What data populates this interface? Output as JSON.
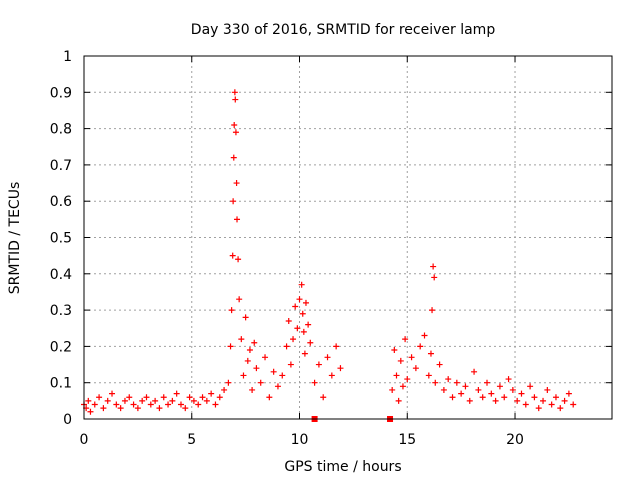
{
  "chart_data": {
    "type": "scatter",
    "title": "Day 330 of 2016, SRMTID for receiver lamp",
    "xlabel": "GPS time / hours",
    "ylabel": "SRMTID / TECUs",
    "xlim": [
      0,
      24.5
    ],
    "ylim": [
      0,
      1
    ],
    "x_ticks": [
      0,
      5,
      10,
      15,
      20
    ],
    "x_tick_labels": [
      "0",
      "5",
      "10",
      "15",
      "20"
    ],
    "y_ticks": [
      0,
      0.1,
      0.2,
      0.3,
      0.4,
      0.5,
      0.6,
      0.7,
      0.8,
      0.9,
      1
    ],
    "y_tick_labels": [
      "0",
      "0.1",
      "0.2",
      "0.3",
      "0.4",
      "0.5",
      "0.6",
      "0.7",
      "0.8",
      "0.9",
      "1"
    ],
    "grid": true,
    "legend": "none",
    "marker_color": "#ff0000",
    "series": [
      {
        "name": "SRMTID",
        "marker": "plus",
        "x": [
          0.0,
          0.1,
          0.2,
          0.3,
          0.5,
          0.7,
          0.9,
          1.1,
          1.3,
          1.5,
          1.7,
          1.9,
          2.1,
          2.3,
          2.5,
          2.7,
          2.9,
          3.1,
          3.3,
          3.5,
          3.7,
          3.9,
          4.1,
          4.3,
          4.5,
          4.7,
          4.9,
          5.1,
          5.3,
          5.5,
          5.7,
          5.9,
          6.1,
          6.3,
          6.5,
          6.7,
          6.8,
          6.85,
          6.9,
          6.92,
          6.95,
          6.97,
          7.0,
          7.02,
          7.05,
          7.08,
          7.1,
          7.15,
          7.2,
          7.3,
          7.4,
          7.5,
          7.6,
          7.7,
          7.8,
          7.9,
          8.0,
          8.2,
          8.4,
          8.6,
          8.8,
          9.0,
          9.2,
          9.4,
          9.5,
          9.6,
          9.7,
          9.8,
          9.9,
          10.0,
          10.1,
          10.15,
          10.2,
          10.25,
          10.3,
          10.4,
          10.5,
          10.7,
          10.9,
          11.1,
          11.3,
          11.5,
          11.7,
          11.9,
          14.3,
          14.4,
          14.5,
          14.6,
          14.7,
          14.8,
          14.9,
          15.0,
          15.2,
          15.4,
          15.6,
          15.8,
          16.0,
          16.1,
          16.15,
          16.2,
          16.25,
          16.3,
          16.5,
          16.7,
          16.9,
          17.1,
          17.3,
          17.5,
          17.7,
          17.9,
          18.1,
          18.3,
          18.5,
          18.7,
          18.9,
          19.1,
          19.3,
          19.5,
          19.7,
          19.9,
          20.1,
          20.3,
          20.5,
          20.7,
          20.9,
          21.1,
          21.3,
          21.5,
          21.7,
          21.9,
          22.1,
          22.3,
          22.5,
          22.7
        ],
        "y": [
          0.04,
          0.03,
          0.05,
          0.02,
          0.04,
          0.06,
          0.03,
          0.05,
          0.07,
          0.04,
          0.03,
          0.05,
          0.06,
          0.04,
          0.03,
          0.05,
          0.06,
          0.04,
          0.05,
          0.03,
          0.06,
          0.04,
          0.05,
          0.07,
          0.04,
          0.03,
          0.06,
          0.05,
          0.04,
          0.06,
          0.05,
          0.07,
          0.04,
          0.06,
          0.08,
          0.1,
          0.2,
          0.3,
          0.45,
          0.6,
          0.72,
          0.81,
          0.9,
          0.88,
          0.79,
          0.65,
          0.55,
          0.44,
          0.33,
          0.22,
          0.12,
          0.28,
          0.16,
          0.19,
          0.08,
          0.21,
          0.14,
          0.1,
          0.17,
          0.06,
          0.13,
          0.09,
          0.12,
          0.2,
          0.27,
          0.15,
          0.22,
          0.31,
          0.25,
          0.33,
          0.37,
          0.29,
          0.24,
          0.18,
          0.32,
          0.26,
          0.21,
          0.1,
          0.15,
          0.06,
          0.17,
          0.12,
          0.2,
          0.14,
          0.08,
          0.19,
          0.12,
          0.05,
          0.16,
          0.09,
          0.22,
          0.11,
          0.17,
          0.14,
          0.2,
          0.23,
          0.12,
          0.18,
          0.3,
          0.42,
          0.39,
          0.1,
          0.15,
          0.08,
          0.11,
          0.06,
          0.1,
          0.07,
          0.09,
          0.05,
          0.13,
          0.08,
          0.06,
          0.1,
          0.07,
          0.05,
          0.09,
          0.06,
          0.11,
          0.08,
          0.05,
          0.07,
          0.04,
          0.09,
          0.06,
          0.03,
          0.05,
          0.08,
          0.04,
          0.06,
          0.03,
          0.05,
          0.07,
          0.04
        ]
      },
      {
        "name": "gap markers",
        "marker": "square",
        "x": [
          10.7,
          14.2
        ],
        "y": [
          0,
          0
        ]
      }
    ]
  }
}
